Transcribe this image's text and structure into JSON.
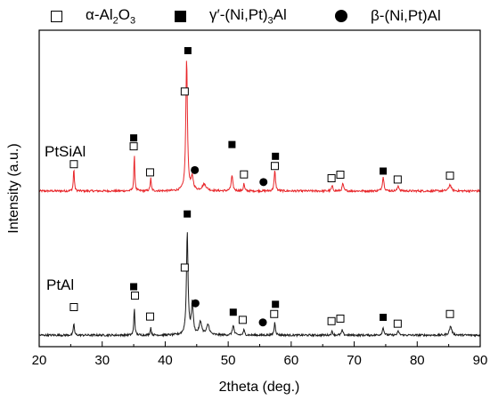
{
  "legend": [
    {
      "symbol": "open-square",
      "label_html": "α-Al<sub>2</sub>O<sub>3</sub>",
      "label_text": "α-Al2O3"
    },
    {
      "symbol": "filled-square",
      "label_text": "γ'-(Ni,Pt)3Al",
      "label_html": "γ′-(Ni,Pt)<sub>3</sub>Al"
    },
    {
      "symbol": "filled-circle",
      "label_text": "β-(Ni,Pt)Al",
      "label_html": "β-(Ni,Pt)Al"
    }
  ],
  "chart_data": {
    "type": "line",
    "xlabel": "2theta (deg.)",
    "ylabel": "Intensity (a.u.)",
    "xlim": [
      20,
      90
    ],
    "xticks": [
      20,
      30,
      40,
      50,
      60,
      70,
      80,
      90
    ],
    "grid": false,
    "series": [
      {
        "name": "PtSiAl",
        "color": "#e8262a",
        "baseline": 0.61,
        "peaks": [
          {
            "x": 25.5,
            "h": 0.09,
            "w": 0.18
          },
          {
            "x": 35.1,
            "h": 0.14,
            "w": 0.18
          },
          {
            "x": 37.7,
            "h": 0.05,
            "w": 0.2
          },
          {
            "x": 43.4,
            "h": 0.52,
            "w": 0.3
          },
          {
            "x": 44.3,
            "h": 0.05,
            "w": 0.4
          },
          {
            "x": 46.2,
            "h": 0.025,
            "w": 0.8
          },
          {
            "x": 50.6,
            "h": 0.06,
            "w": 0.3
          },
          {
            "x": 52.5,
            "h": 0.03,
            "w": 0.2
          },
          {
            "x": 57.4,
            "h": 0.08,
            "w": 0.25
          },
          {
            "x": 66.5,
            "h": 0.02,
            "w": 0.25
          },
          {
            "x": 68.2,
            "h": 0.03,
            "w": 0.25
          },
          {
            "x": 74.6,
            "h": 0.055,
            "w": 0.3
          },
          {
            "x": 77.0,
            "h": 0.02,
            "w": 0.3
          },
          {
            "x": 85.2,
            "h": 0.025,
            "w": 0.45
          }
        ],
        "markers": [
          {
            "x": 25.5,
            "y": 0.715,
            "symbol": "open-square"
          },
          {
            "x": 35.0,
            "y": 0.785,
            "symbol": "open-square"
          },
          {
            "x": 35.0,
            "y": 0.818,
            "symbol": "filled-square"
          },
          {
            "x": 37.6,
            "y": 0.683,
            "symbol": "open-square"
          },
          {
            "x": 43.1,
            "y": 1.0,
            "symbol": "open-square"
          },
          {
            "x": 43.6,
            "y": 1.16,
            "symbol": "filled-square"
          },
          {
            "x": 44.7,
            "y": 0.692,
            "symbol": "filled-circle"
          },
          {
            "x": 50.6,
            "y": 0.792,
            "symbol": "filled-square"
          },
          {
            "x": 52.5,
            "y": 0.675,
            "symbol": "open-square"
          },
          {
            "x": 55.6,
            "y": 0.645,
            "symbol": "filled-circle"
          },
          {
            "x": 57.4,
            "y": 0.708,
            "symbol": "open-square"
          },
          {
            "x": 57.5,
            "y": 0.746,
            "symbol": "filled-square"
          },
          {
            "x": 66.4,
            "y": 0.66,
            "symbol": "open-square"
          },
          {
            "x": 67.8,
            "y": 0.674,
            "symbol": "open-square"
          },
          {
            "x": 74.6,
            "y": 0.688,
            "symbol": "filled-square"
          },
          {
            "x": 76.9,
            "y": 0.655,
            "symbol": "open-square"
          },
          {
            "x": 85.2,
            "y": 0.67,
            "symbol": "open-square"
          }
        ]
      },
      {
        "name": "PtAl",
        "color": "#1a1a1a",
        "baseline": 0.045,
        "peaks": [
          {
            "x": 25.5,
            "h": 0.05,
            "w": 0.18
          },
          {
            "x": 35.1,
            "h": 0.11,
            "w": 0.18
          },
          {
            "x": 37.7,
            "h": 0.03,
            "w": 0.2
          },
          {
            "x": 43.5,
            "h": 0.4,
            "w": 0.3
          },
          {
            "x": 44.3,
            "h": 0.12,
            "w": 0.35
          },
          {
            "x": 45.6,
            "h": 0.05,
            "w": 0.5
          },
          {
            "x": 46.8,
            "h": 0.04,
            "w": 0.5
          },
          {
            "x": 50.8,
            "h": 0.04,
            "w": 0.3
          },
          {
            "x": 52.5,
            "h": 0.02,
            "w": 0.25
          },
          {
            "x": 57.4,
            "h": 0.05,
            "w": 0.25
          },
          {
            "x": 66.5,
            "h": 0.015,
            "w": 0.25
          },
          {
            "x": 68.1,
            "h": 0.02,
            "w": 0.25
          },
          {
            "x": 74.6,
            "h": 0.03,
            "w": 0.3
          },
          {
            "x": 77.0,
            "h": 0.015,
            "w": 0.3
          },
          {
            "x": 85.3,
            "h": 0.035,
            "w": 0.45
          }
        ],
        "markers": [
          {
            "x": 25.5,
            "y": 0.155,
            "symbol": "open-square"
          },
          {
            "x": 35.2,
            "y": 0.2,
            "symbol": "open-square"
          },
          {
            "x": 35.0,
            "y": 0.235,
            "symbol": "filled-square"
          },
          {
            "x": 37.6,
            "y": 0.118,
            "symbol": "open-square"
          },
          {
            "x": 43.1,
            "y": 0.31,
            "symbol": "open-square"
          },
          {
            "x": 43.5,
            "y": 0.52,
            "symbol": "filled-square"
          },
          {
            "x": 44.8,
            "y": 0.17,
            "symbol": "filled-circle"
          },
          {
            "x": 50.8,
            "y": 0.135,
            "symbol": "filled-square"
          },
          {
            "x": 52.3,
            "y": 0.105,
            "symbol": "open-square"
          },
          {
            "x": 55.5,
            "y": 0.095,
            "symbol": "filled-circle"
          },
          {
            "x": 57.3,
            "y": 0.128,
            "symbol": "open-square"
          },
          {
            "x": 57.5,
            "y": 0.166,
            "symbol": "filled-square"
          },
          {
            "x": 66.4,
            "y": 0.1,
            "symbol": "open-square"
          },
          {
            "x": 67.8,
            "y": 0.11,
            "symbol": "open-square"
          },
          {
            "x": 74.6,
            "y": 0.115,
            "symbol": "filled-square"
          },
          {
            "x": 76.9,
            "y": 0.09,
            "symbol": "open-square"
          },
          {
            "x": 85.2,
            "y": 0.128,
            "symbol": "open-square"
          }
        ]
      }
    ],
    "ylim": [
      0,
      1.24
    ],
    "yticks_shown": false
  }
}
